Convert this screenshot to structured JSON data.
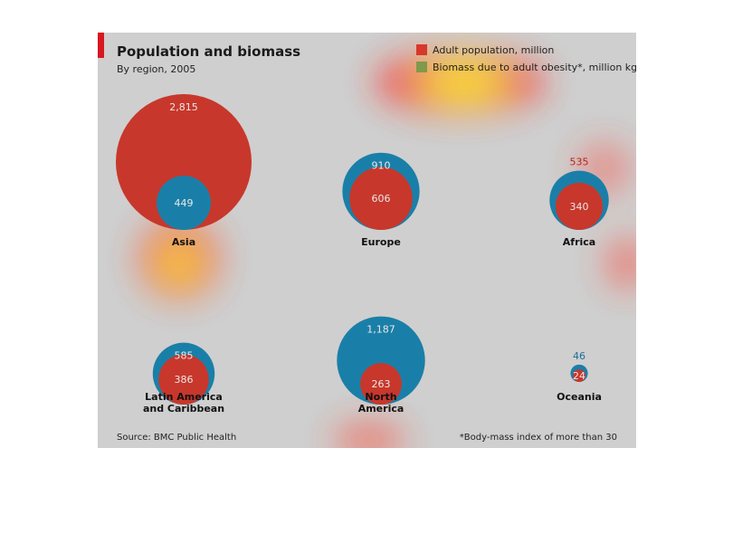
{
  "chart_data": {
    "type": "bubble",
    "title": "Population and biomass",
    "subtitle": "By region, 2005",
    "legend": [
      {
        "label": "Adult population, million",
        "color": "#d8382a"
      },
      {
        "label": "Biomass due to adult obesity*, million kg",
        "color": "#7f9a4a"
      }
    ],
    "regions": [
      {
        "name": [
          "Asia"
        ],
        "population": 2815,
        "population_label": "2,815",
        "biomass": 449,
        "biomass_label": "449"
      },
      {
        "name": [
          "Europe"
        ],
        "population": 910,
        "population_label": "910",
        "biomass": 606,
        "biomass_label": "606"
      },
      {
        "name": [
          "Africa"
        ],
        "population": 535,
        "population_label": "535",
        "biomass": 340,
        "biomass_label": "340"
      },
      {
        "name": [
          "Latin America",
          "and Caribbean"
        ],
        "population": 585,
        "population_label": "585",
        "biomass": 386,
        "biomass_label": "386"
      },
      {
        "name": [
          "North",
          "America"
        ],
        "population": 1187,
        "population_label": "1,187",
        "biomass": 263,
        "biomass_label": "263"
      },
      {
        "name": [
          "Oceania"
        ],
        "population": 46,
        "population_label": "46",
        "biomass": 24,
        "biomass_label": "24"
      }
    ],
    "source": "Source: BMC Public Health",
    "footnote": "*Body-mass index of more than 30"
  },
  "colors": {
    "panel_background": "#cfcfcf",
    "accent_red": "#d8171f",
    "circle_red": "#c8372b",
    "circle_blue": "#1a7fa8",
    "label_blue": "#1a6f98",
    "label_red": "#b3261e"
  }
}
